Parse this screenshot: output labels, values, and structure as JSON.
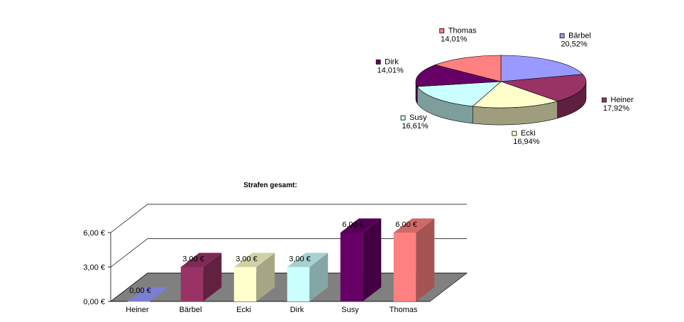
{
  "chart_data": [
    {
      "type": "pie",
      "labels": [
        "Bärbel",
        "Heiner",
        "Ecki",
        "Susy",
        "Dirk",
        "Thomas"
      ],
      "values": [
        20.52,
        17.92,
        16.94,
        16.61,
        14.01,
        14.01
      ],
      "value_labels": [
        "20,52%",
        "17,92%",
        "16,94%",
        "16,61%",
        "14,01%",
        "14,01%"
      ],
      "colors": [
        "#9999ff",
        "#993366",
        "#ffffcc",
        "#ccffff",
        "#660066",
        "#ff8080"
      ],
      "legend": "labels beside slices",
      "three_d": true
    },
    {
      "type": "bar",
      "title": "Strafen gesamt:",
      "categories": [
        "Heiner",
        "Bärbel",
        "Ecki",
        "Dirk",
        "Susy",
        "Thomas"
      ],
      "values": [
        0,
        3,
        3,
        3,
        6,
        6
      ],
      "value_labels": [
        "0,00 €",
        "3,00 €",
        "3,00 €",
        "3,00 €",
        "6,00 €",
        "6,00 €"
      ],
      "colors": [
        "#9999ff",
        "#993366",
        "#ffffcc",
        "#ccffff",
        "#660066",
        "#ff8080"
      ],
      "y_ticks": [
        "0,00 €",
        "3,00 €",
        "6,00 €"
      ],
      "ylim": [
        0,
        6
      ],
      "grid": true,
      "three_d": true
    }
  ]
}
